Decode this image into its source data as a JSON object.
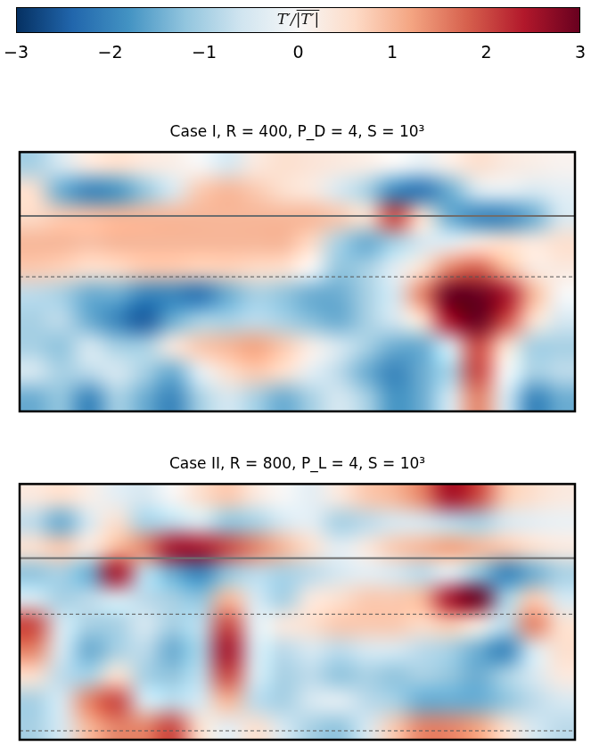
{
  "colorbar": {
    "label": "T′/|T′|",
    "range": [
      -3,
      3
    ],
    "ticks": [
      {
        "value": -3,
        "label": "−3"
      },
      {
        "value": -2,
        "label": "−2"
      },
      {
        "value": -1,
        "label": "−1"
      },
      0,
      1,
      2,
      3
    ]
  },
  "chart_data": [
    {
      "type": "heatmap",
      "title": "Case I, R = 400, P_D = 4, S = 10³",
      "xlim": [
        0,
        1
      ],
      "ylim": [
        0,
        1
      ],
      "tick_labels": false,
      "lines": [
        {
          "y": 0.754,
          "line_style": "solid",
          "color": "#6e6e6e"
        },
        {
          "y": 0.519,
          "line_style": "dashed",
          "color": "#555555"
        }
      ],
      "cells": [
        [
          -1,
          -0.5,
          0.3,
          0.5,
          0.3,
          0.2,
          0,
          -0.5,
          0.3,
          0.5,
          0.4,
          0.3,
          0.2,
          0,
          -0.3,
          0.2,
          0.5,
          0.3,
          0.2,
          0.1
        ],
        [
          0.5,
          -1.5,
          -2,
          -1.8,
          -1.2,
          -0.5,
          0.8,
          1,
          0.8,
          0.5,
          0.3,
          -0.5,
          -1,
          -2,
          -2.2,
          -1.5,
          -0.5,
          -0.3,
          -0.5,
          -0.3
        ],
        [
          0.6,
          0.8,
          0.9,
          1,
          1,
          1,
          1,
          1,
          1,
          1,
          1,
          0.8,
          0.5,
          2,
          0.5,
          -1.5,
          -2,
          -2,
          -1.5,
          -0.5
        ],
        [
          1,
          1,
          0.9,
          1,
          1,
          1,
          1,
          1,
          1,
          1,
          0.6,
          -1,
          -1.5,
          -1,
          -0.5,
          -0.3,
          0.3,
          0.5,
          0.3,
          0.5
        ],
        [
          0.8,
          0.7,
          0.5,
          0.6,
          0.8,
          0.8,
          0.7,
          0.7,
          0.6,
          0.5,
          0,
          -1.2,
          -1,
          -0.3,
          0.5,
          1.5,
          1.8,
          1,
          0.3,
          0.3
        ],
        [
          -0.8,
          -1,
          -1.5,
          -1.5,
          -2,
          -2,
          -2.2,
          -1.5,
          -1,
          -1.2,
          -1.5,
          -1.5,
          -1,
          -0.5,
          1.5,
          3,
          3,
          2.5,
          1,
          0
        ],
        [
          -1,
          -0.8,
          -1.5,
          -2,
          -2.5,
          -1.5,
          -1,
          -1,
          -0.8,
          -1,
          -1.3,
          -1.5,
          -1,
          -0.5,
          0.5,
          2.5,
          3,
          2,
          0.5,
          -0.5
        ],
        [
          -1,
          -1.2,
          -0.5,
          -1,
          -1,
          0.3,
          0.8,
          1,
          1.2,
          0.8,
          0.2,
          -0.5,
          -1,
          -1.5,
          -1.5,
          -0.5,
          2,
          0.5,
          -1,
          -1
        ],
        [
          -0.5,
          -1,
          -0.8,
          -0.5,
          -1,
          -1.5,
          -0.3,
          0.5,
          0.8,
          0.5,
          -0.3,
          -0.8,
          -1.5,
          -2,
          -1.5,
          -1,
          2,
          0,
          -1,
          -0.8
        ],
        [
          -1.5,
          -1.2,
          -2,
          -1,
          -1.5,
          -2,
          -1,
          -0.5,
          -1,
          -1.5,
          -1,
          -0.5,
          -1,
          -1.8,
          -1.5,
          -0.5,
          1.5,
          -0.5,
          -2,
          -1.5
        ]
      ]
    },
    {
      "type": "heatmap",
      "title": "Case II, R = 800, P_L = 4, S = 10³",
      "xlim": [
        0,
        1
      ],
      "ylim": [
        0,
        1
      ],
      "tick_labels": false,
      "lines": [
        {
          "y": 0.71,
          "line_style": "solid",
          "color": "#6e6e6e"
        },
        {
          "y": 0.491,
          "line_style": "dashed",
          "color": "#555555"
        },
        {
          "y": 0.035,
          "line_style": "dashed",
          "color": "#555555"
        }
      ],
      "cells": [
        [
          0.3,
          0.5,
          0.2,
          -0.3,
          -0.5,
          0,
          0.5,
          0.8,
          0.3,
          0,
          -0.3,
          0.3,
          0.8,
          1,
          1.5,
          2.5,
          2,
          0.8,
          0.5,
          0.3
        ],
        [
          -0.8,
          -1.5,
          -0.5,
          0.5,
          -1,
          -0.8,
          -0.5,
          -1.2,
          -1,
          -0.5,
          -0.3,
          -1,
          -0.8,
          -0.5,
          -0.5,
          -0.8,
          -1,
          -0.5,
          -0.3,
          -0.2
        ],
        [
          0.5,
          0.8,
          0.3,
          1,
          1.5,
          2.5,
          2.5,
          2,
          1.5,
          1,
          0.5,
          -0.3,
          0.3,
          0.8,
          1,
          1.2,
          1,
          0.8,
          0.5,
          0.3
        ],
        [
          -1.2,
          -1,
          -1.5,
          2.5,
          -0.8,
          -1.5,
          -2,
          -1.2,
          -0.8,
          -1,
          -0.8,
          -0.5,
          -0.3,
          -0.5,
          -0.8,
          -0.3,
          -1.2,
          -2,
          -1.5,
          -1
        ],
        [
          -0.5,
          -1,
          -0.8,
          -0.5,
          -0.8,
          -1,
          -1.2,
          1,
          -0.5,
          -1,
          0.3,
          0.5,
          0.8,
          0.8,
          1,
          2.5,
          3,
          -1,
          0.8,
          -0.5
        ],
        [
          2,
          -0.5,
          -1,
          -1,
          -0.5,
          -1,
          -0.8,
          2,
          -0.3,
          0.3,
          0.5,
          0.8,
          0.8,
          0.8,
          0.6,
          0.8,
          0.3,
          -0.8,
          1.5,
          0.5
        ],
        [
          1.5,
          -0.5,
          -1.5,
          -1,
          -0.8,
          -1.5,
          -1,
          2.5,
          -0.5,
          -0.8,
          -0.5,
          -0.8,
          -0.5,
          -0.5,
          -0.8,
          -1,
          -1.5,
          -2,
          -0.5,
          0.5
        ],
        [
          0.5,
          -0.8,
          -1,
          0.5,
          -1,
          -1.2,
          -0.8,
          2,
          -0.5,
          -1,
          -0.8,
          -1.2,
          -1,
          -1.2,
          -1,
          -1.2,
          -1.5,
          -1,
          -0.5,
          0.3
        ],
        [
          -1,
          -0.5,
          1.5,
          2,
          -0.5,
          -0.8,
          -0.5,
          1,
          -0.8,
          -1,
          -0.5,
          -0.3,
          -0.8,
          -1,
          -1.5,
          -1.5,
          -1.5,
          -1.2,
          -0.8,
          -0.5
        ],
        [
          -1,
          -0.5,
          1,
          1.5,
          1.5,
          2,
          0.5,
          -0.3,
          0.5,
          -0.5,
          -1,
          -1.2,
          -0.5,
          0.8,
          1.5,
          1.5,
          1.2,
          0.5,
          -0.5,
          -0.8
        ]
      ]
    }
  ]
}
